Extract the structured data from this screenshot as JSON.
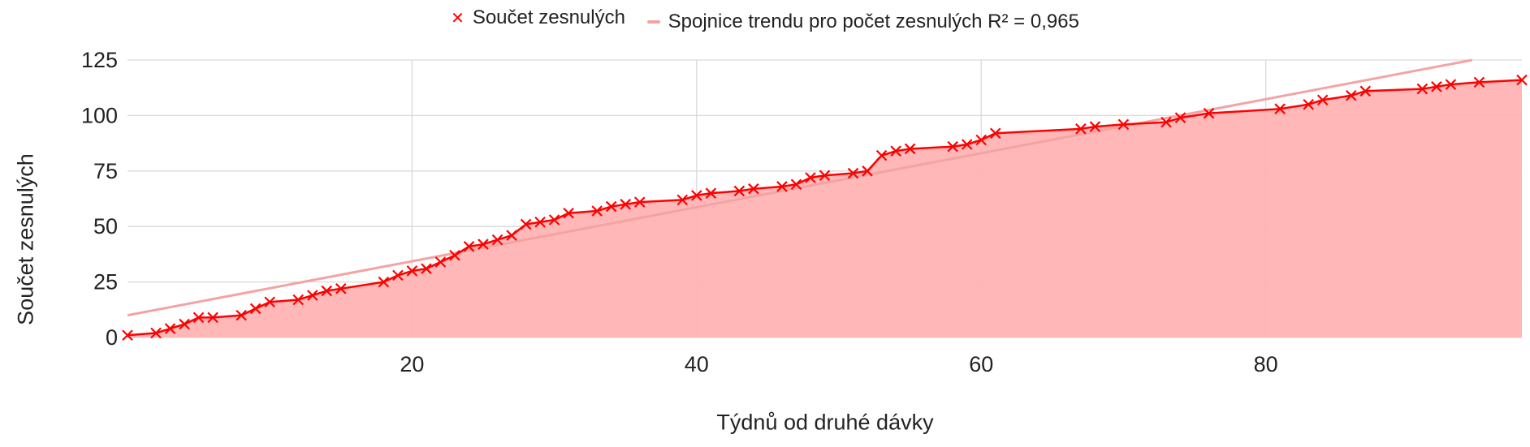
{
  "chart_data": {
    "type": "area",
    "xlabel": "Týdnů od druhé dávky",
    "ylabel": "Součet zesnulých",
    "xlim": [
      0,
      98
    ],
    "ylim": [
      0,
      125
    ],
    "xticks": [
      20,
      40,
      60,
      80
    ],
    "yticks": [
      0,
      25,
      50,
      75,
      100,
      125
    ],
    "grid": true,
    "legend_position": "top",
    "legend": [
      {
        "label": "Součet zesnulých",
        "marker": "×",
        "color": "#ff0000"
      },
      {
        "label": "Spojnice trendu pro počet zesnulých R² = 0,965",
        "marker": "line",
        "color": "#f4a3a3"
      }
    ],
    "series": [
      {
        "name": "Součet zesnulých",
        "color": "#ff0000",
        "fill": "#ffb3b3",
        "x": [
          0,
          2,
          3,
          4,
          5,
          6,
          8,
          9,
          10,
          12,
          13,
          14,
          15,
          18,
          19,
          20,
          21,
          22,
          23,
          24,
          25,
          26,
          27,
          28,
          29,
          30,
          31,
          33,
          34,
          35,
          36,
          39,
          40,
          41,
          43,
          44,
          46,
          47,
          48,
          49,
          51,
          52,
          53,
          54,
          55,
          58,
          59,
          60,
          61,
          67,
          68,
          70,
          73,
          74,
          76,
          81,
          83,
          84,
          86,
          87,
          91,
          92,
          93,
          95,
          98
        ],
        "y": [
          1,
          2,
          4,
          6,
          9,
          9,
          10,
          13,
          16,
          17,
          19,
          21,
          22,
          25,
          28,
          30,
          31,
          34,
          37,
          41,
          42,
          44,
          46,
          51,
          52,
          53,
          56,
          57,
          59,
          60,
          61,
          62,
          64,
          65,
          66,
          67,
          68,
          69,
          72,
          73,
          74,
          75,
          82,
          84,
          85,
          86,
          87,
          89,
          92,
          94,
          95,
          96,
          97,
          99,
          101,
          103,
          105,
          107,
          109,
          111,
          112,
          113,
          114,
          115,
          116
        ]
      },
      {
        "name": "Spojnice trendu pro počet zesnulých",
        "type": "trendline",
        "r_squared": "0,965",
        "color": "#f4a3a3",
        "x": [
          0,
          94.5
        ],
        "y": [
          10,
          125
        ]
      }
    ]
  }
}
